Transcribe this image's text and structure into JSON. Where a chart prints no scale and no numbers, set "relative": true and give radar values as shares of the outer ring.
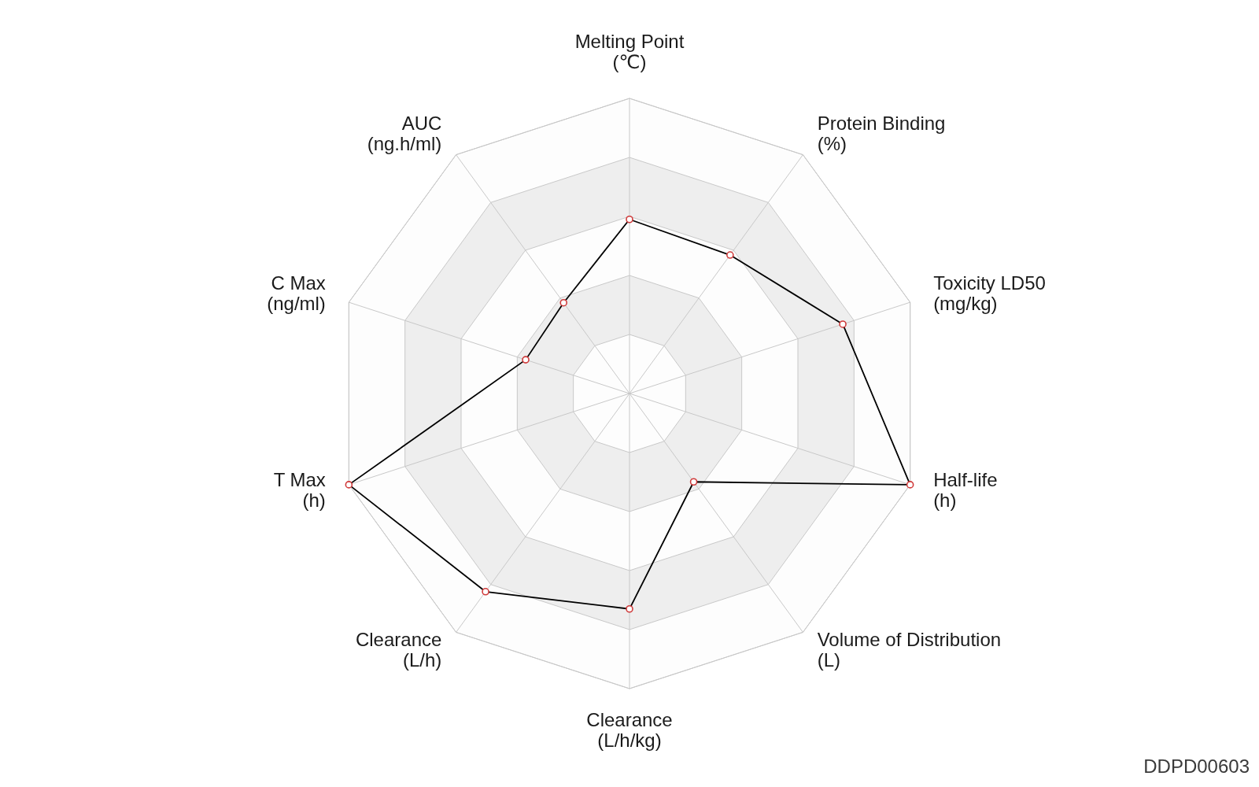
{
  "chart_data": {
    "type": "radar",
    "categories": [
      "Melting Point (℃)",
      "Protein Binding (%)",
      "Toxicity LD50 (mg/kg)",
      "Half-life (h)",
      "Volume of Distribution (L)",
      "Clearance (L/h/kg)",
      "Clearance (L/h)",
      "T Max (h)",
      "C Max (ng/ml)",
      "AUC (ng.h/ml)"
    ],
    "relative": true,
    "series": [
      {
        "color": "#000000",
        "values": [
          0.59,
          0.58,
          0.76,
          1.0,
          0.37,
          0.73,
          0.83,
          1.0,
          0.37,
          0.38
        ]
      }
    ],
    "grid": true,
    "marker": "circle",
    "annotations": [
      "DDPD00603"
    ]
  }
}
